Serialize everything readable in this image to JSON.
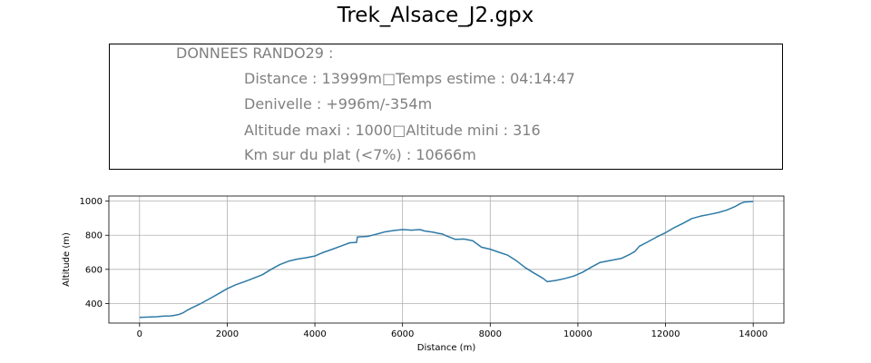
{
  "figure_title": "Trek_Alsace_J2.gpx",
  "info": {
    "heading": "DONNEES RANDO29  :",
    "line1": "Distance : 13999m□Temps estime : 04:14:47",
    "line2": "Denivelle : +996m/-354m",
    "line3": "Altitude maxi : 1000□Altitude mini : 316",
    "line4": "Km sur du plat (<7%) : 10666m"
  },
  "colors": {
    "line": "#2e7aa6",
    "grid": "#b0b0b0",
    "text_gray": "#808080"
  },
  "chart_data": {
    "type": "line",
    "title": "",
    "xlabel": "Distance (m)",
    "ylabel": "Altitude (m)",
    "xlim": [
      -700,
      14700
    ],
    "ylim": [
      285,
      1030
    ],
    "xticks": [
      0,
      2000,
      4000,
      6000,
      8000,
      10000,
      12000,
      14000
    ],
    "yticks": [
      400,
      600,
      800,
      1000
    ],
    "grid": true,
    "series": [
      {
        "x": [
          0,
          200,
          400,
          500,
          600,
          700,
          800,
          900,
          1000,
          1100,
          1200,
          1400,
          1600,
          1800,
          2000,
          2200,
          2400,
          2600,
          2800,
          3000,
          3200,
          3400,
          3600,
          3800,
          4000,
          4100,
          4200,
          4400,
          4600,
          4800,
          4950,
          4970,
          5200,
          5400,
          5600,
          5800,
          6000,
          6100,
          6200,
          6400,
          6500,
          6700,
          6800,
          6900,
          7000,
          7200,
          7400,
          7600,
          7800,
          8000,
          8200,
          8400,
          8600,
          8800,
          9000,
          9200,
          9300,
          9500,
          9700,
          9900,
          10100,
          10300,
          10500,
          10600,
          10800,
          11000,
          11200,
          11300,
          11400,
          11600,
          11800,
          12000,
          12200,
          12400,
          12600,
          12800,
          13000,
          13200,
          13400,
          13600,
          13700,
          13800,
          14000
        ],
        "y": [
          318,
          320,
          322,
          325,
          326,
          327,
          330,
          336,
          346,
          362,
          375,
          400,
          428,
          457,
          487,
          510,
          528,
          548,
          568,
          600,
          628,
          648,
          660,
          668,
          678,
          690,
          700,
          718,
          737,
          756,
          758,
          790,
          793,
          806,
          820,
          828,
          833,
          832,
          830,
          833,
          825,
          818,
          812,
          808,
          796,
          776,
          778,
          768,
          730,
          718,
          700,
          683,
          650,
          610,
          578,
          548,
          528,
          535,
          546,
          560,
          582,
          612,
          640,
          645,
          655,
          665,
          690,
          705,
          735,
          762,
          790,
          815,
          845,
          870,
          898,
          912,
          922,
          933,
          948,
          970,
          985,
          995,
          998
        ],
        "color": "#2e7aa6"
      }
    ]
  }
}
